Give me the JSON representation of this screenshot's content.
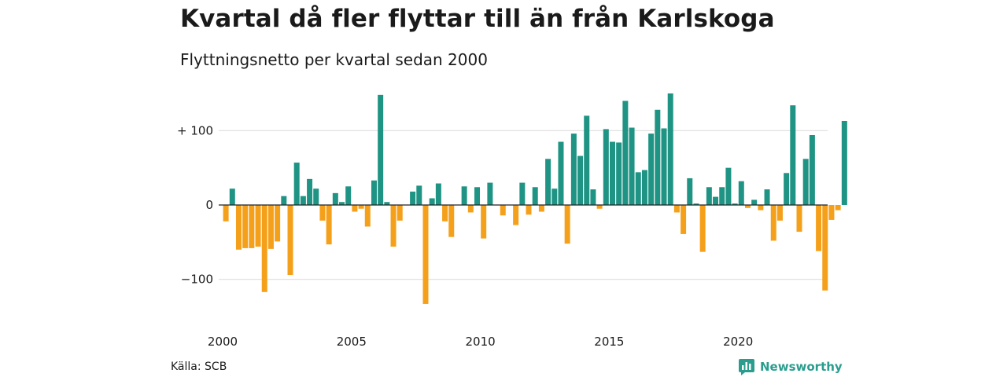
{
  "chart_data": {
    "type": "bar",
    "title": "Kvartal då fler flyttar till än från Karlskoga",
    "subtitle": "Flyttningsnetto per kvartal sedan 2000",
    "xlabel": "",
    "ylabel": "",
    "x_start_year": 2000,
    "periods_per_year": 4,
    "ylim": [
      -150,
      150
    ],
    "y_ticks": [
      {
        "value": 100,
        "label": "+ 100"
      },
      {
        "value": 0,
        "label": "0"
      },
      {
        "value": -100,
        "label": "−100"
      }
    ],
    "x_ticks": [
      {
        "value": 2000,
        "label": "2000"
      },
      {
        "value": 2005,
        "label": "2005"
      },
      {
        "value": 2010,
        "label": "2010"
      },
      {
        "value": 2015,
        "label": "2015"
      },
      {
        "value": 2020,
        "label": "2020"
      }
    ],
    "colors": {
      "positive": "#1f9484",
      "negative": "#f5a01a",
      "grid": "#d9d9d9",
      "zero": "#222222"
    },
    "values": [
      -22,
      22,
      -60,
      -58,
      -58,
      -56,
      -117,
      -59,
      -49,
      12,
      -94,
      57,
      12,
      35,
      22,
      -21,
      -53,
      16,
      4,
      25,
      -9,
      -5,
      -29,
      33,
      148,
      4,
      -56,
      -21,
      0,
      18,
      26,
      -133,
      9,
      29,
      -22,
      -43,
      0,
      25,
      -10,
      24,
      -45,
      30,
      0,
      -14,
      0,
      -27,
      30,
      -13,
      24,
      -9,
      62,
      22,
      85,
      -52,
      96,
      66,
      120,
      21,
      -5,
      102,
      85,
      84,
      140,
      104,
      44,
      47,
      96,
      128,
      103,
      150,
      -10,
      -39,
      36,
      2,
      -63,
      24,
      11,
      24,
      50,
      2,
      32,
      -4,
      7,
      -7,
      21,
      -48,
      -21,
      43,
      134,
      -36,
      62,
      94,
      -62,
      -115,
      -20,
      -7,
      113
    ],
    "grid": true
  },
  "footer": {
    "source": "Källa: SCB",
    "brand": "Newsworthy"
  }
}
